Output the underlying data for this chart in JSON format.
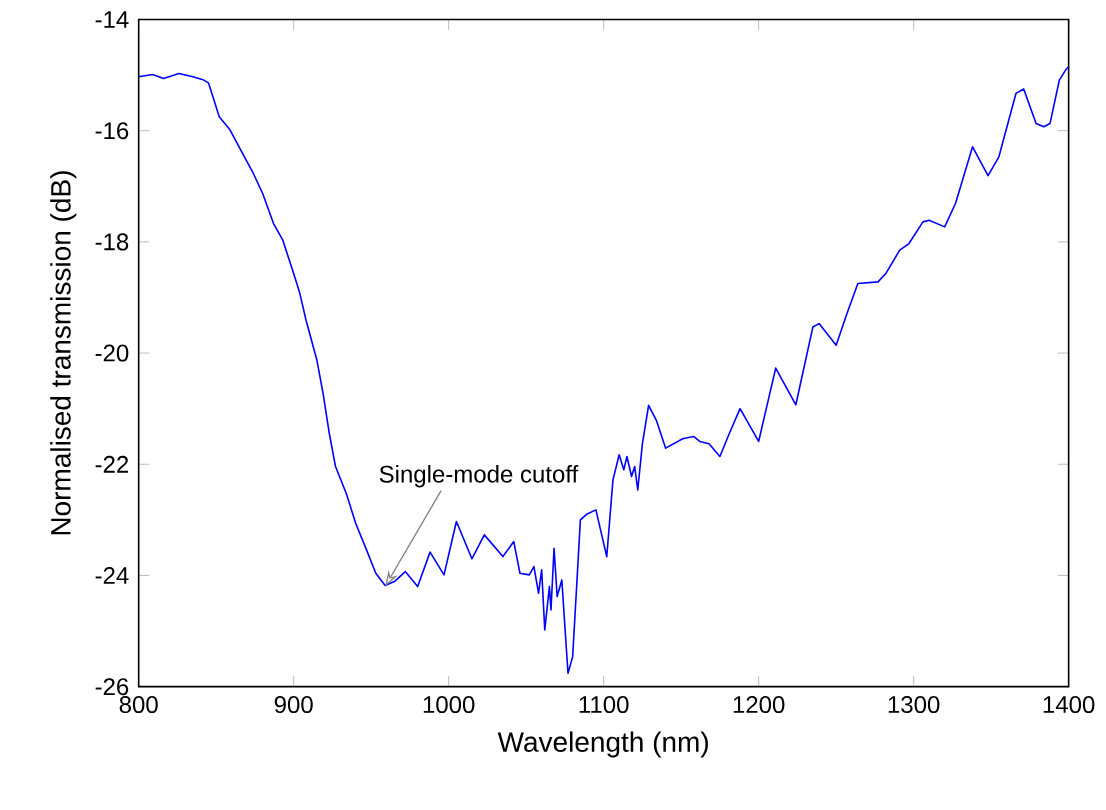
{
  "chart_data": {
    "type": "line",
    "xlabel": "Wavelength (nm)",
    "ylabel": "Normalised transmission (dB)",
    "xlim": [
      800,
      1400
    ],
    "ylim": [
      -26,
      -14
    ],
    "xticks": [
      800,
      900,
      1000,
      1100,
      1200,
      1300,
      1400
    ],
    "yticks": [
      -26,
      -24,
      -22,
      -20,
      -18,
      -16,
      -14
    ],
    "marker": "none",
    "line_style": "solid",
    "annotations": [
      {
        "text": "Single-mode cutoff",
        "x": 959,
        "y": -24.2
      }
    ],
    "series": [
      {
        "color": "#0000ff",
        "x": [
          800,
          809,
          816,
          826,
          835,
          842,
          845,
          852,
          859,
          867,
          874,
          880,
          887,
          893,
          900,
          904,
          908,
          915,
          919,
          923,
          927,
          934,
          940,
          947,
          953,
          959,
          965,
          972,
          980,
          988,
          997,
          1005,
          1015,
          1023,
          1035,
          1042,
          1046,
          1052,
          1055,
          1058,
          1060,
          1062,
          1065,
          1066,
          1068,
          1070,
          1073,
          1077,
          1080,
          1085,
          1089,
          1095,
          1102,
          1106,
          1110,
          1113,
          1115,
          1118,
          1120,
          1122,
          1125,
          1129,
          1134,
          1140,
          1151,
          1158,
          1162,
          1168,
          1175,
          1181,
          1188,
          1200,
          1211,
          1224,
          1235,
          1239,
          1250,
          1257,
          1264,
          1277,
          1282,
          1291,
          1297,
          1306,
          1310,
          1320,
          1327,
          1338,
          1348,
          1355,
          1366,
          1371,
          1379,
          1384,
          1388,
          1394,
          1398,
          1400
        ],
        "values": [
          -15.03,
          -14.99,
          -15.06,
          -14.97,
          -15.03,
          -15.09,
          -15.14,
          -15.75,
          -15.99,
          -16.41,
          -16.77,
          -17.13,
          -17.67,
          -17.97,
          -18.57,
          -18.93,
          -19.41,
          -20.13,
          -20.73,
          -21.45,
          -22.04,
          -22.53,
          -23.06,
          -23.54,
          -23.96,
          -24.18,
          -24.11,
          -23.93,
          -24.2,
          -23.58,
          -23.99,
          -23.03,
          -23.7,
          -23.27,
          -23.66,
          -23.39,
          -23.96,
          -23.99,
          -23.84,
          -24.32,
          -23.9,
          -24.98,
          -24.2,
          -24.62,
          -23.51,
          -24.38,
          -24.08,
          -25.76,
          -25.46,
          -23.0,
          -22.9,
          -22.82,
          -23.66,
          -22.28,
          -21.83,
          -22.1,
          -21.86,
          -22.22,
          -22.04,
          -22.46,
          -21.63,
          -20.94,
          -21.21,
          -21.71,
          -21.54,
          -21.5,
          -21.59,
          -21.63,
          -21.86,
          -21.45,
          -21.0,
          -21.59,
          -20.27,
          -20.93,
          -19.53,
          -19.47,
          -19.86,
          -19.29,
          -18.75,
          -18.72,
          -18.57,
          -18.15,
          -18.03,
          -17.64,
          -17.61,
          -17.73,
          -17.31,
          -16.29,
          -16.81,
          -16.47,
          -15.33,
          -15.25,
          -15.87,
          -15.93,
          -15.87,
          -15.09,
          -14.91,
          -14.85
        ]
      }
    ]
  }
}
